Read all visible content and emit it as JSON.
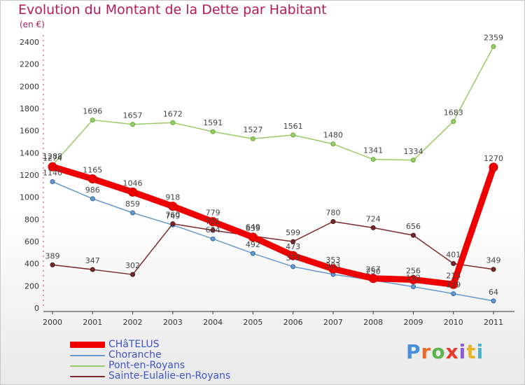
{
  "header": {
    "title": "Evolution du Montant de la Dette par Habitant",
    "subtitle": "(en €)"
  },
  "brand": {
    "letters": [
      "P",
      "r",
      "o",
      "x",
      "i",
      "t",
      "i"
    ],
    "colors": [
      "#4a90d9",
      "#e86b2a",
      "#5ab54a",
      "#e83a2a",
      "#8a5bd6",
      "#e8b52a",
      "#4ab5c8"
    ]
  },
  "chart_data": {
    "type": "line",
    "title": "Evolution du Montant de la Dette par Habitant",
    "subtitle": "(en €)",
    "xlabel": "",
    "ylabel": "",
    "categories": [
      "2000",
      "2001",
      "2002",
      "2003",
      "2004",
      "2005",
      "2006",
      "2007",
      "2008",
      "2009",
      "2010",
      "2011"
    ],
    "ylim": [
      0,
      2400
    ],
    "yticks": [
      0,
      200,
      400,
      600,
      800,
      1000,
      1200,
      1400,
      1600,
      1800,
      2000,
      2200,
      2400
    ],
    "grid": false,
    "legend_position": "bottom-left",
    "series": [
      {
        "name": "CHâTELUS",
        "color": "#ee0000",
        "values": [
          1274,
          1165,
          1046,
          918,
          779,
          639,
          473,
          353,
          267,
          256,
          213,
          1270
        ]
      },
      {
        "name": "Choranche",
        "color": "#6699cc",
        "values": [
          1140,
          986,
          859,
          749,
          624,
          492,
          373,
          303,
          250,
          192,
          129,
          64
        ],
        "labels": [
          "1140",
          "986",
          "859",
          "749",
          "624",
          "492",
          "373",
          "303",
          "250",
          "192",
          "129",
          "64"
        ]
      },
      {
        "name": "Pont-en-Royans",
        "color": "#99cc66",
        "values": [
          1288,
          1696,
          1657,
          1672,
          1591,
          1527,
          1561,
          1480,
          1341,
          1334,
          1683,
          2359
        ]
      },
      {
        "name": "Sainte-Eulalie-en-Royans",
        "color": "#7a2a2a",
        "values": [
          389,
          347,
          302,
          760,
          701,
          649,
          599,
          780,
          724,
          656,
          401,
          349
        ]
      }
    ]
  }
}
